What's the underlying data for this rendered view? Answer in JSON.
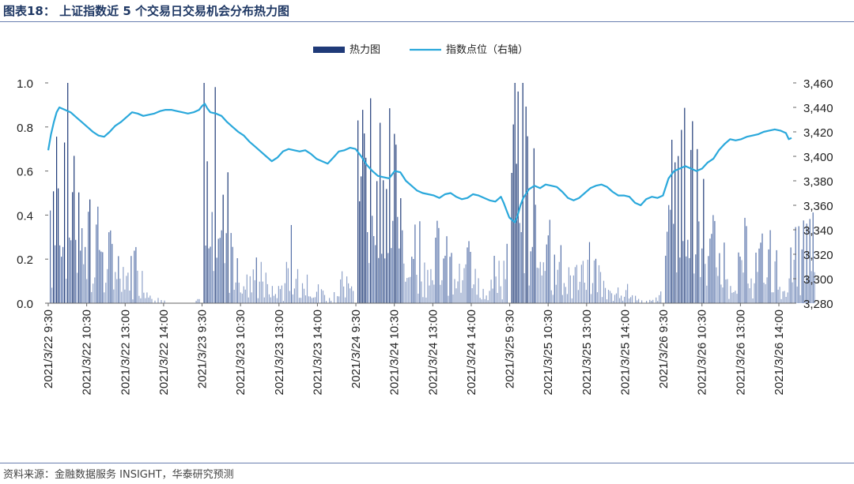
{
  "figure": {
    "title": "图表18： 上证指数近 5 个交易日交易机会分布热力图",
    "source": "资料来源：金融数据服务 INSIGHT，华泰研究预测"
  },
  "chart_data": {
    "type": "bar+line",
    "legend": [
      "热力图",
      "指数点位（右轴）"
    ],
    "legend_position": "top-center",
    "grid": false,
    "colors": {
      "heat": "#1f3a78",
      "line": "#2aa8db"
    },
    "y_left": {
      "ticks": [
        "1.0",
        "0.8",
        "0.6",
        "0.4",
        "0.2",
        "0.0"
      ],
      "ylim": [
        0,
        1.0
      ]
    },
    "y_right": {
      "ticks": [
        "3,460",
        "3,440",
        "3,420",
        "3,400",
        "3,380",
        "3,360",
        "3,340",
        "3,320",
        "3,300",
        "3,280"
      ],
      "ylim": [
        3280,
        3460
      ]
    },
    "x_ticks": [
      "2021/3/22 9:30",
      "2021/3/22 10:30",
      "2021/3/22 13:00",
      "2021/3/22 14:00",
      "2021/3/23 9:30",
      "2021/3/23 10:30",
      "2021/3/23 13:00",
      "2021/3/23 14:00",
      "2021/3/24 9:30",
      "2021/3/24 10:30",
      "2021/3/24 13:00",
      "2021/3/24 14:00",
      "2021/3/25 9:30",
      "2021/3/25 10:30",
      "2021/3/25 13:00",
      "2021/3/25 14:00",
      "2021/3/26 9:30",
      "2021/3/26 10:30",
      "2021/3/26 13:00",
      "2021/3/26 14:00"
    ],
    "heat_days": [
      {
        "day": "2021/3/22",
        "profile": [
          0.55,
          0.95,
          0.85,
          0.7,
          0.55,
          0.45,
          0.35,
          0.3,
          0.25,
          0.2,
          0.15,
          0.3,
          0.1,
          0.05,
          0.02,
          0,
          0,
          0,
          0,
          0.03
        ]
      },
      {
        "day": "2021/3/23",
        "profile": [
          0.85,
          0.9,
          0.6,
          0.5,
          0.3,
          0.2,
          0.1,
          0.25,
          0.08,
          0.05,
          0.1,
          0.3,
          0.1,
          0.15,
          0.08,
          0.05,
          0.02,
          0.1,
          0.3,
          0.02
        ]
      },
      {
        "day": "2021/3/24",
        "profile": [
          0.7,
          0.9,
          0.85,
          0.8,
          0.7,
          0.6,
          0.5,
          0.4,
          0.35,
          0.3,
          0.3,
          0.25,
          0.2,
          0.15,
          0.25,
          0.2,
          0.1,
          0.2,
          0.15,
          0.3
        ]
      },
      {
        "day": "2021/3/25",
        "profile": [
          0.95,
          0.95,
          0.8,
          0.6,
          0.4,
          0.35,
          0.3,
          0.2,
          0.15,
          0.2,
          0.25,
          0.15,
          0.05,
          0.05,
          0.1,
          0.05,
          0.02,
          0.02,
          0.02,
          0.05
        ]
      },
      {
        "day": "2021/3/26",
        "profile": [
          0.9,
          0.95,
          0.85,
          0.7,
          0.6,
          0.45,
          0.35,
          0.3,
          0.2,
          0.15,
          0.3,
          0.2,
          0.25,
          0.3,
          0.2,
          0.15,
          0.25,
          0.3,
          0.35,
          0.4
        ]
      }
    ],
    "index_points": [
      [
        0,
        3405
      ],
      [
        1,
        3418
      ],
      [
        2,
        3428
      ],
      [
        3,
        3436
      ],
      [
        4,
        3440
      ],
      [
        6,
        3438
      ],
      [
        8,
        3436
      ],
      [
        10,
        3432
      ],
      [
        12,
        3428
      ],
      [
        14,
        3424
      ],
      [
        16,
        3420
      ],
      [
        18,
        3417
      ],
      [
        20,
        3416
      ],
      [
        22,
        3420
      ],
      [
        24,
        3425
      ],
      [
        26,
        3428
      ],
      [
        28,
        3432
      ],
      [
        30,
        3436
      ],
      [
        32,
        3435
      ],
      [
        34,
        3433
      ],
      [
        36,
        3434
      ],
      [
        38,
        3435
      ],
      [
        40,
        3437
      ],
      [
        42,
        3438
      ],
      [
        44,
        3438
      ],
      [
        46,
        3437
      ],
      [
        48,
        3436
      ],
      [
        50,
        3435
      ],
      [
        52,
        3436
      ],
      [
        54,
        3438
      ],
      [
        55,
        3441
      ],
      [
        56,
        3443
      ],
      [
        57,
        3439
      ],
      [
        58,
        3436
      ],
      [
        60,
        3435
      ],
      [
        62,
        3433
      ],
      [
        64,
        3428
      ],
      [
        66,
        3424
      ],
      [
        68,
        3420
      ],
      [
        70,
        3417
      ],
      [
        72,
        3412
      ],
      [
        74,
        3408
      ],
      [
        76,
        3404
      ],
      [
        78,
        3400
      ],
      [
        80,
        3396
      ],
      [
        82,
        3399
      ],
      [
        84,
        3404
      ],
      [
        86,
        3406
      ],
      [
        88,
        3405
      ],
      [
        90,
        3404
      ],
      [
        92,
        3405
      ],
      [
        94,
        3402
      ],
      [
        96,
        3398
      ],
      [
        98,
        3396
      ],
      [
        100,
        3394
      ],
      [
        102,
        3399
      ],
      [
        104,
        3404
      ],
      [
        106,
        3405
      ],
      [
        108,
        3407
      ],
      [
        110,
        3406
      ],
      [
        112,
        3400
      ],
      [
        114,
        3393
      ],
      [
        116,
        3388
      ],
      [
        118,
        3384
      ],
      [
        120,
        3383
      ],
      [
        122,
        3382
      ],
      [
        124,
        3388
      ],
      [
        126,
        3387
      ],
      [
        128,
        3380
      ],
      [
        130,
        3376
      ],
      [
        132,
        3372
      ],
      [
        134,
        3370
      ],
      [
        136,
        3369
      ],
      [
        138,
        3368
      ],
      [
        140,
        3366
      ],
      [
        142,
        3369
      ],
      [
        144,
        3370
      ],
      [
        146,
        3367
      ],
      [
        148,
        3365
      ],
      [
        150,
        3366
      ],
      [
        152,
        3369
      ],
      [
        154,
        3368
      ],
      [
        156,
        3366
      ],
      [
        158,
        3364
      ],
      [
        160,
        3363
      ],
      [
        162,
        3367
      ],
      [
        163,
        3362
      ],
      [
        164,
        3356
      ],
      [
        165,
        3350
      ],
      [
        166,
        3348
      ],
      [
        167,
        3346
      ],
      [
        168,
        3352
      ],
      [
        169,
        3360
      ],
      [
        170,
        3366
      ],
      [
        172,
        3373
      ],
      [
        174,
        3376
      ],
      [
        176,
        3374
      ],
      [
        178,
        3377
      ],
      [
        180,
        3376
      ],
      [
        182,
        3375
      ],
      [
        184,
        3371
      ],
      [
        186,
        3366
      ],
      [
        188,
        3364
      ],
      [
        190,
        3366
      ],
      [
        192,
        3370
      ],
      [
        194,
        3374
      ],
      [
        196,
        3376
      ],
      [
        198,
        3377
      ],
      [
        200,
        3375
      ],
      [
        202,
        3371
      ],
      [
        204,
        3368
      ],
      [
        206,
        3368
      ],
      [
        208,
        3367
      ],
      [
        210,
        3362
      ],
      [
        212,
        3360
      ],
      [
        214,
        3365
      ],
      [
        216,
        3367
      ],
      [
        218,
        3366
      ],
      [
        220,
        3368
      ],
      [
        222,
        3382
      ],
      [
        224,
        3388
      ],
      [
        226,
        3390
      ],
      [
        228,
        3392
      ],
      [
        230,
        3390
      ],
      [
        232,
        3388
      ],
      [
        234,
        3390
      ],
      [
        236,
        3395
      ],
      [
        238,
        3398
      ],
      [
        240,
        3405
      ],
      [
        242,
        3410
      ],
      [
        244,
        3414
      ],
      [
        246,
        3413
      ],
      [
        248,
        3414
      ],
      [
        250,
        3416
      ],
      [
        252,
        3417
      ],
      [
        254,
        3418
      ],
      [
        256,
        3420
      ],
      [
        258,
        3421
      ],
      [
        260,
        3422
      ],
      [
        262,
        3421
      ],
      [
        264,
        3419
      ],
      [
        265,
        3414
      ],
      [
        266,
        3415
      ]
    ]
  }
}
